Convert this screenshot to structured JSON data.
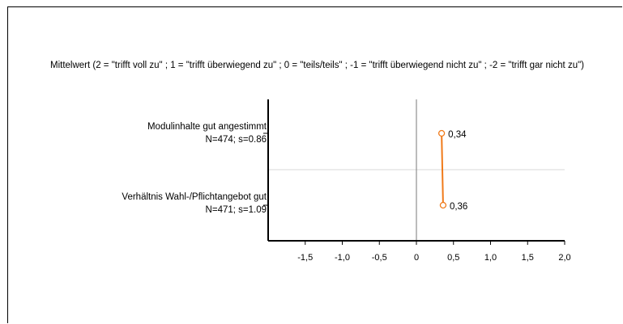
{
  "chart_data": {
    "type": "line",
    "title": "Mittelwert (2 = \"trifft voll zu\" ; 1 = \"trifft überwiegend zu\" ; 0 = \"teils/teils\" ; -1 = \"trifft überwiegend nicht zu\" ; -2 = \"trifft gar nicht zu\")",
    "categories": [
      {
        "name": "Modulinhalte gut angestimmt",
        "stats": "N=474; s=0.86"
      },
      {
        "name": "Verhältnis Wahl-/Pflichtangebot gut",
        "stats": "N=471; s=1.09"
      }
    ],
    "values": [
      0.34,
      0.36
    ],
    "value_labels": [
      "0,34",
      "0,36"
    ],
    "xlim": [
      -2.0,
      2.0
    ],
    "xticks": [
      -1.5,
      -1.0,
      -0.5,
      0,
      0.5,
      1.0,
      1.5,
      2.0
    ],
    "xtick_labels": [
      "-1,5",
      "-1,0",
      "-0,5",
      "0",
      "0,5",
      "1,0",
      "1,5",
      "2,0"
    ],
    "grid": true,
    "colors": {
      "line": "#f07a1a",
      "marker_fill": "#ffffff"
    }
  }
}
